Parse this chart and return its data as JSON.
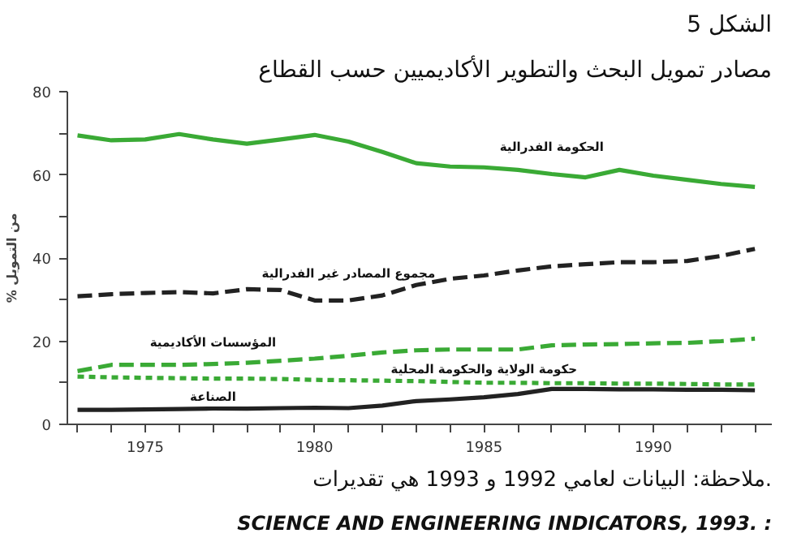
{
  "chart_data": {
    "type": "line",
    "title": "الشكل 5",
    "subtitle": "مصادر تمويل البحث والتطوير الأكاديميين حسب القطاع",
    "ylabel": "% من التمويل",
    "x": [
      1973,
      1974,
      1975,
      1976,
      1977,
      1978,
      1979,
      1980,
      1981,
      1982,
      1983,
      1984,
      1985,
      1986,
      1987,
      1988,
      1989,
      1990,
      1991,
      1992,
      1993
    ],
    "series": [
      {
        "name": "الحكومة الفدرالية",
        "color": "#3aaa35",
        "line_style": "solid",
        "values": [
          69.5,
          68.3,
          68.5,
          69.8,
          68.5,
          67.5,
          68.5,
          69.6,
          68,
          65.5,
          62.8,
          62,
          61.8,
          61.2,
          60.2,
          59.4,
          61.2,
          59.8,
          58.8,
          57.8,
          57.1
        ]
      },
      {
        "name": "مجموع المصادر غير الفدرالية",
        "color": "#222222",
        "line_style": "dashed",
        "values": [
          30.8,
          31.3,
          31.6,
          31.8,
          31.5,
          32.5,
          32.3,
          29.8,
          29.8,
          31,
          33.5,
          35,
          35.8,
          37,
          38,
          38.5,
          39,
          39,
          39.3,
          40.5,
          42.2
        ]
      },
      {
        "name": "المؤسسات الأكاديمية",
        "color": "#3aaa35",
        "line_style": "dashed",
        "values": [
          12.8,
          14.3,
          14.3,
          14.3,
          14.5,
          14.8,
          15.3,
          15.8,
          16.5,
          17.3,
          17.8,
          18,
          18,
          18,
          19,
          19.2,
          19.3,
          19.5,
          19.6,
          20,
          20.6
        ]
      },
      {
        "name": "حكومة الولاية والحكومة المحلية",
        "color": "#3aaa35",
        "line_style": "dotted",
        "values": [
          11.5,
          11.3,
          11.2,
          11.1,
          11,
          11,
          10.9,
          10.7,
          10.6,
          10.5,
          10.4,
          10.2,
          10,
          10,
          9.9,
          9.9,
          9.8,
          9.8,
          9.7,
          9.6,
          9.6
        ]
      },
      {
        "name": "الصناعة",
        "color": "#222222",
        "line_style": "solid",
        "values": [
          3.5,
          3.5,
          3.6,
          3.7,
          3.8,
          3.8,
          3.9,
          4,
          3.9,
          4.5,
          5.6,
          6,
          6.5,
          7.3,
          8.5,
          8.5,
          8.4,
          8.4,
          8.3,
          8.3,
          8.2
        ]
      }
    ],
    "xlim": [
      1972.7,
      1993.5
    ],
    "xticks": [
      {
        "value": 1973,
        "label": null
      },
      {
        "value": 1974,
        "label": null
      },
      1975,
      {
        "value": 1976,
        "label": null
      },
      {
        "value": 1977,
        "label": null
      },
      {
        "value": 1978,
        "label": null
      },
      {
        "value": 1979,
        "label": null
      },
      1980,
      {
        "value": 1981,
        "label": null
      },
      {
        "value": 1982,
        "label": null
      },
      {
        "value": 1983,
        "label": null
      },
      {
        "value": 1984,
        "label": null
      },
      1985,
      {
        "value": 1986,
        "label": null
      },
      {
        "value": 1987,
        "label": null
      },
      {
        "value": 1988,
        "label": null
      },
      {
        "value": 1989,
        "label": null
      },
      1990,
      {
        "value": 1991,
        "label": null
      },
      {
        "value": 1992,
        "label": null
      },
      {
        "value": 1993,
        "label": null
      }
    ],
    "ylim": [
      0,
      80
    ],
    "yticks": [
      0,
      {
        "value": 10,
        "label": null
      },
      20,
      {
        "value": 30,
        "label": null
      },
      40,
      {
        "value": 50,
        "label": null
      },
      60,
      {
        "value": 70,
        "label": null
      },
      80
    ],
    "grid": false,
    "legend": false,
    "annotations": [
      "ملاحظة: البيانات لعامي 1992 و 1993 هي تقديرات.",
      "SCIENCE AND ENGINEERING INDICATORS, 1993. :"
    ]
  }
}
